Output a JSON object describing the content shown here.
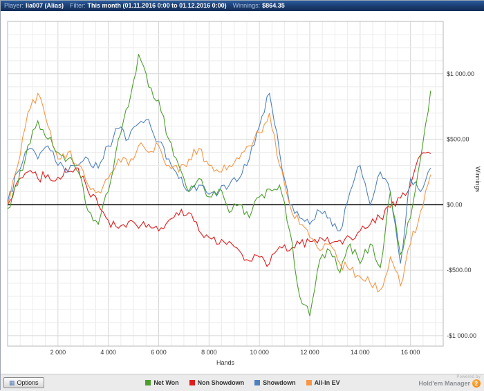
{
  "title_bar": {
    "player_label": "Player:",
    "player_value": "lia007 (Alias)",
    "filter_label": "Filter:",
    "filter_value": "This month (01.11.2016 0:00 to 01.12.2016 0:00)",
    "winnings_label": "Winnings:",
    "winnings_value": "$864.35"
  },
  "chart_data": {
    "type": "line",
    "title": "",
    "xlabel": "Hands",
    "ylabel": "Winnings",
    "x_ticks": [
      "2 000",
      "4 000",
      "6 000",
      "8 000",
      "10 000",
      "12 000",
      "14 000",
      "16 000"
    ],
    "x_tick_values": [
      2000,
      4000,
      6000,
      8000,
      10000,
      12000,
      14000,
      16000
    ],
    "y_ticks": [
      "$1 000.00",
      "$500.00",
      "$0.00",
      "-$500.00",
      "-$1 000.00"
    ],
    "y_tick_values": [
      1000,
      500,
      0,
      -500,
      -1000
    ],
    "xlim": [
      0,
      17300
    ],
    "ylim": [
      -1080,
      1400
    ],
    "grid": true,
    "zero_line": 0,
    "legend_position": "bottom",
    "x": [
      0,
      400,
      800,
      1200,
      1600,
      2000,
      2400,
      2800,
      3200,
      3600,
      4000,
      4400,
      4800,
      5200,
      5600,
      6000,
      6400,
      6800,
      7200,
      7600,
      8000,
      8400,
      8800,
      9200,
      9600,
      10000,
      10400,
      10800,
      11200,
      11600,
      12000,
      12400,
      12800,
      13200,
      13600,
      14000,
      14400,
      14800,
      15200,
      15600,
      16000,
      16400,
      16800
    ],
    "series": [
      {
        "name": "Net Won",
        "color": "#4d9e2d",
        "values": [
          -30,
          150,
          450,
          640,
          500,
          400,
          350,
          250,
          -50,
          -150,
          100,
          500,
          750,
          1150,
          900,
          800,
          500,
          300,
          100,
          200,
          60,
          120,
          -60,
          0,
          -100,
          60,
          120,
          150,
          -200,
          -700,
          -850,
          -420,
          -350,
          -520,
          -300,
          -450,
          -300,
          -480,
          100,
          -380,
          -100,
          350,
          870
        ]
      },
      {
        "name": "Non Showdown",
        "color": "#e11b1b",
        "values": [
          0,
          180,
          250,
          200,
          230,
          210,
          250,
          280,
          100,
          0,
          -120,
          -180,
          -130,
          -180,
          -150,
          -200,
          -120,
          -80,
          -60,
          -200,
          -250,
          -300,
          -280,
          -350,
          -430,
          -400,
          -450,
          -320,
          -350,
          -300,
          -280,
          -250,
          -300,
          -270,
          -250,
          -200,
          -150,
          -100,
          -20,
          50,
          150,
          380,
          390
        ]
      },
      {
        "name": "Showdown",
        "color": "#4f81bd",
        "values": [
          20,
          250,
          420,
          350,
          450,
          300,
          250,
          300,
          350,
          280,
          450,
          580,
          500,
          620,
          650,
          480,
          350,
          200,
          100,
          150,
          80,
          100,
          150,
          200,
          350,
          600,
          850,
          400,
          0,
          -100,
          -150,
          -50,
          -100,
          -200,
          100,
          300,
          0,
          250,
          100,
          -450,
          200,
          100,
          280
        ]
      },
      {
        "name": "All-In EV",
        "color": "#f79646",
        "values": [
          0,
          300,
          700,
          850,
          600,
          350,
          400,
          300,
          150,
          100,
          200,
          350,
          300,
          450,
          400,
          450,
          300,
          250,
          350,
          430,
          300,
          250,
          300,
          350,
          450,
          550,
          700,
          300,
          0,
          -150,
          -250,
          -350,
          -300,
          -450,
          -500,
          -550,
          -600,
          -650,
          -400,
          -620,
          -300,
          -50,
          230
        ]
      }
    ]
  },
  "footer": {
    "options_label": "Options",
    "powered_by": "Powered by",
    "brand": "Hold'em Manager",
    "brand_badge": "2"
  }
}
